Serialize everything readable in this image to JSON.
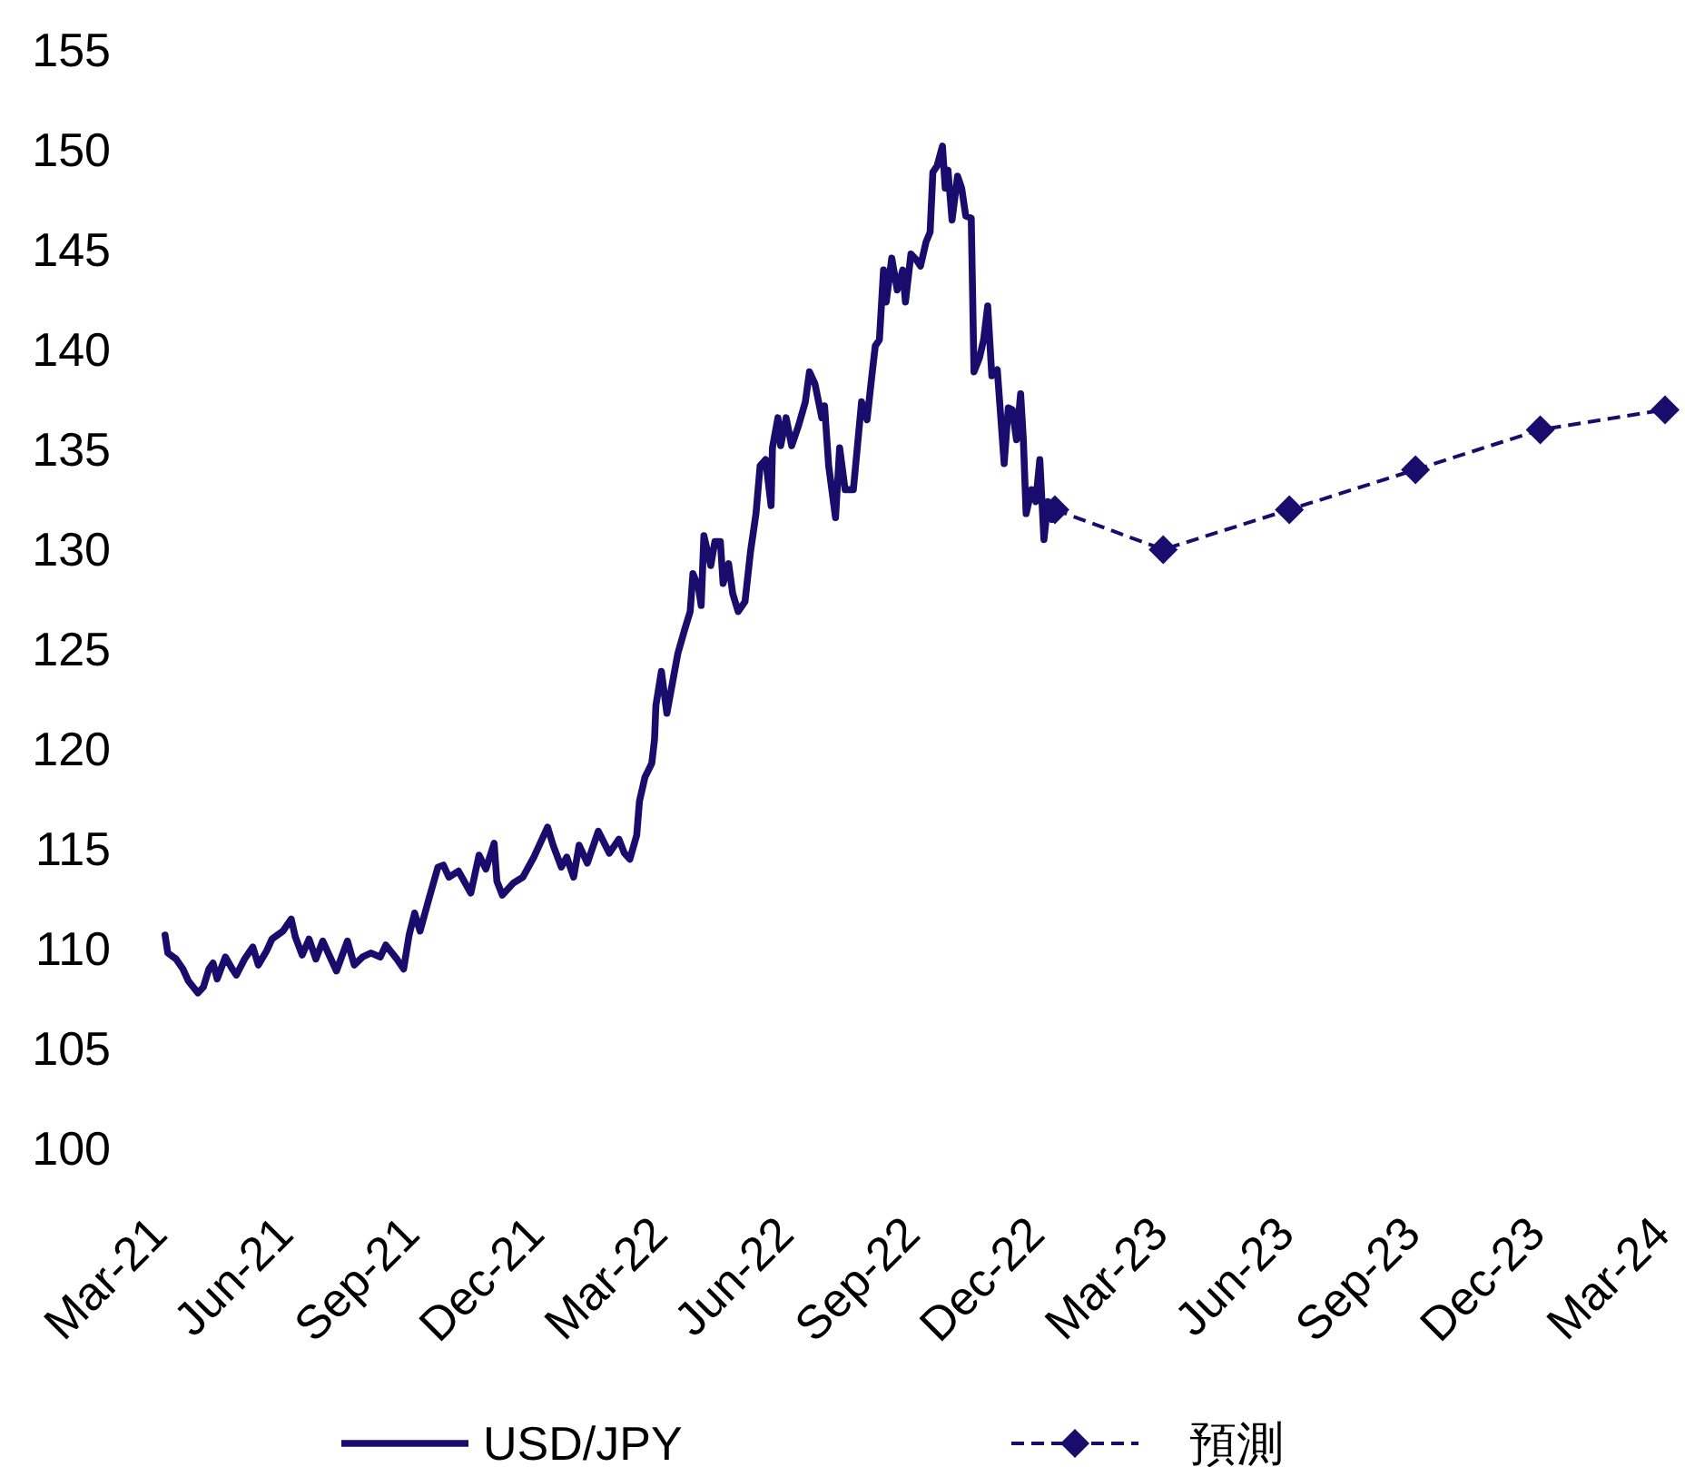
{
  "chart_data": {
    "type": "line",
    "xlim": [
      "2021-03-01",
      "2024-03-01"
    ],
    "xticks": [
      {
        "value": "2021-03-01",
        "label": "Mar-21"
      },
      {
        "value": "2021-06-01",
        "label": "Jun-21"
      },
      {
        "value": "2021-09-01",
        "label": "Sep-21"
      },
      {
        "value": "2021-12-01",
        "label": "Dec-21"
      },
      {
        "value": "2022-03-01",
        "label": "Mar-22"
      },
      {
        "value": "2022-06-01",
        "label": "Jun-22"
      },
      {
        "value": "2022-09-01",
        "label": "Sep-22"
      },
      {
        "value": "2022-12-01",
        "label": "Dec-22"
      },
      {
        "value": "2023-03-01",
        "label": "Mar-23"
      },
      {
        "value": "2023-06-01",
        "label": "Jun-23"
      },
      {
        "value": "2023-09-01",
        "label": "Sep-23"
      },
      {
        "value": "2023-12-01",
        "label": "Dec-23"
      },
      {
        "value": "2024-03-01",
        "label": "Mar-24"
      }
    ],
    "ylim": [
      100,
      155
    ],
    "yticks": [
      100,
      105,
      110,
      115,
      120,
      125,
      130,
      135,
      140,
      145,
      150,
      155
    ],
    "legend": "bottom",
    "series": [
      {
        "name": "USD/JPY",
        "color": "#1a0c6c",
        "marker": "none",
        "line_style": "solid",
        "x": [
          "2021-03-03",
          "2021-03-05",
          "2021-03-11",
          "2021-03-16",
          "2021-03-20",
          "2021-03-27",
          "2021-03-31",
          "2021-04-04",
          "2021-04-07",
          "2021-04-10",
          "2021-04-16",
          "2021-04-21",
          "2021-04-24",
          "2021-04-30",
          "2021-05-06",
          "2021-05-10",
          "2021-05-16",
          "2021-05-20",
          "2021-05-28",
          "2021-06-03",
          "2021-06-06",
          "2021-06-11",
          "2021-06-16",
          "2021-06-21",
          "2021-06-26",
          "2021-07-06",
          "2021-07-14",
          "2021-07-19",
          "2021-07-25",
          "2021-07-31",
          "2021-08-07",
          "2021-08-11",
          "2021-08-19",
          "2021-08-24",
          "2021-08-28",
          "2021-09-01",
          "2021-09-05",
          "2021-09-11",
          "2021-09-18",
          "2021-09-22",
          "2021-09-26",
          "2021-10-03",
          "2021-10-12",
          "2021-10-18",
          "2021-10-23",
          "2021-10-29",
          "2021-10-31",
          "2021-11-04",
          "2021-11-12",
          "2021-11-19",
          "2021-11-27",
          "2021-12-07",
          "2021-12-11",
          "2021-12-17",
          "2021-12-21",
          "2021-12-26",
          "2021-12-30",
          "2022-01-05",
          "2022-01-13",
          "2022-01-21",
          "2022-01-28",
          "2022-02-01",
          "2022-02-05",
          "2022-02-10",
          "2022-02-12",
          "2022-02-16",
          "2022-02-21",
          "2022-02-23",
          "2022-02-24",
          "2022-02-28",
          "2022-03-04",
          "2022-03-08",
          "2022-03-12",
          "2022-03-17",
          "2022-03-21",
          "2022-03-23",
          "2022-03-27",
          "2022-03-29",
          "2022-03-31",
          "2022-04-05",
          "2022-04-08",
          "2022-04-12",
          "2022-04-14",
          "2022-04-18",
          "2022-04-21",
          "2022-04-25",
          "2022-04-30",
          "2022-05-04",
          "2022-05-08",
          "2022-05-11",
          "2022-05-15",
          "2022-05-19",
          "2022-05-20",
          "2022-05-24",
          "2022-05-26",
          "2022-05-30",
          "2022-06-03",
          "2022-06-08",
          "2022-06-13",
          "2022-06-16",
          "2022-06-20",
          "2022-06-25",
          "2022-06-27",
          "2022-06-30",
          "2022-07-05",
          "2022-07-08",
          "2022-07-12",
          "2022-07-18",
          "2022-07-24",
          "2022-07-28",
          "2022-07-31",
          "2022-08-03",
          "2022-08-06",
          "2022-08-09",
          "2022-08-11",
          "2022-08-15",
          "2022-08-19",
          "2022-08-23",
          "2022-08-25",
          "2022-08-29",
          "2022-09-02",
          "2022-09-05",
          "2022-09-09",
          "2022-09-12",
          "2022-09-14",
          "2022-09-17",
          "2022-09-21",
          "2022-09-23",
          "2022-09-25",
          "2022-09-28",
          "2022-10-02",
          "2022-10-05",
          "2022-10-08",
          "2022-10-12",
          "2022-10-14",
          "2022-10-18",
          "2022-10-21",
          "2022-10-24",
          "2022-10-27",
          "2022-10-31",
          "2022-11-05",
          "2022-11-08",
          "2022-11-11",
          "2022-11-14",
          "2022-11-17",
          "2022-11-19",
          "2022-11-21",
          "2022-11-25",
          "2022-11-28",
          "2022-12-01",
          "2022-12-04",
          "2022-12-07",
          "2022-12-10",
          "2022-12-12"
        ],
        "values": [
          110.7,
          109.8,
          109.5,
          109.0,
          108.4,
          107.8,
          108.1,
          109.0,
          109.3,
          108.5,
          109.6,
          109.0,
          108.7,
          109.5,
          110.1,
          109.2,
          109.9,
          110.5,
          110.9,
          111.5,
          110.6,
          109.7,
          110.5,
          109.5,
          110.4,
          108.9,
          110.4,
          109.2,
          109.6,
          109.8,
          109.6,
          110.2,
          109.5,
          109.0,
          110.7,
          111.8,
          110.9,
          112.4,
          114.1,
          114.2,
          113.6,
          113.9,
          112.8,
          114.7,
          114.0,
          115.3,
          113.4,
          112.7,
          113.3,
          113.6,
          114.6,
          116.1,
          115.2,
          114.1,
          114.6,
          113.6,
          115.2,
          114.3,
          115.9,
          114.8,
          115.5,
          114.8,
          114.5,
          115.7,
          117.4,
          118.6,
          119.3,
          120.5,
          122.2,
          123.9,
          121.8,
          123.3,
          124.8,
          126.0,
          126.9,
          128.8,
          128.1,
          127.2,
          130.7,
          129.2,
          130.4,
          130.4,
          128.3,
          129.3,
          127.8,
          126.9,
          127.4,
          129.9,
          131.8,
          134.2,
          134.5,
          132.2,
          135.1,
          136.6,
          135.2,
          136.6,
          135.2,
          136.2,
          137.4,
          138.9,
          138.3,
          136.6,
          137.2,
          134.2,
          131.6,
          135.1,
          133.0,
          133.0,
          137.4,
          136.5,
          138.4,
          140.2,
          140.5,
          144.0,
          142.4,
          144.6,
          143.0,
          144.0,
          142.4,
          144.8,
          144.5,
          144.2,
          145.4,
          145.9,
          148.9,
          149.2,
          150.2,
          148.1,
          149.0,
          146.5,
          148.7,
          148.1,
          146.7,
          146.6,
          138.9,
          139.6,
          140.5,
          142.2,
          138.7,
          139.0,
          134.3,
          137.1,
          137.0,
          135.5,
          137.8,
          135.5,
          131.8,
          133.0,
          132.4,
          134.5,
          130.5,
          132.4,
          131.5,
          132.0
        ]
      },
      {
        "name": "預測",
        "color": "#1a0c6c",
        "marker": "diamond",
        "line_style": "dashed",
        "x": [
          "2022-12-12",
          "2023-03-01",
          "2023-06-01",
          "2023-09-01",
          "2023-12-01",
          "2024-03-01"
        ],
        "values": [
          132,
          130,
          132,
          134,
          136,
          137
        ]
      }
    ]
  }
}
